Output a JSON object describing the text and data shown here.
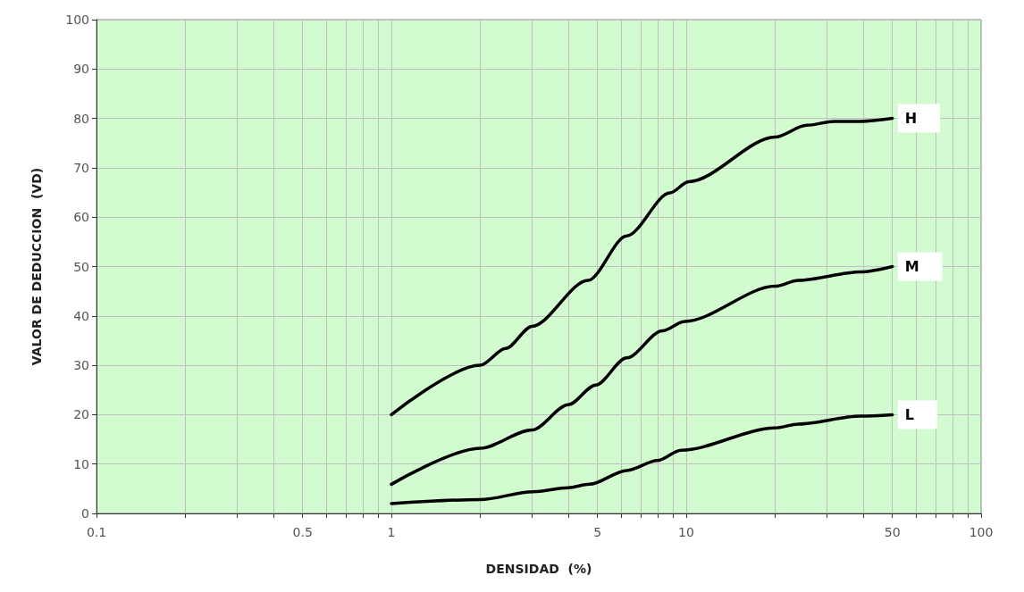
{
  "chart_data": {
    "type": "line",
    "xlabel": "DENSIDAD  (%)",
    "ylabel": "VALOR DE DEDUCCION  (VD)",
    "log": "x",
    "xlim": [
      0.1,
      100
    ],
    "ylim": [
      0,
      100
    ],
    "xticks": [
      0.1,
      {
        "value": 0.2,
        "label": null
      },
      {
        "value": 0.3,
        "label": null
      },
      {
        "value": 0.4,
        "label": null
      },
      0.5,
      {
        "value": 0.6,
        "label": null
      },
      {
        "value": 0.7,
        "label": null
      },
      {
        "value": 0.8,
        "label": null
      },
      {
        "value": 0.9,
        "label": null
      },
      1,
      {
        "value": 2,
        "label": null
      },
      {
        "value": 3,
        "label": null
      },
      {
        "value": 4,
        "label": null
      },
      5,
      {
        "value": 6,
        "label": null
      },
      {
        "value": 7,
        "label": null
      },
      {
        "value": 8,
        "label": null
      },
      {
        "value": 9,
        "label": null
      },
      10,
      {
        "value": 20,
        "label": null
      },
      {
        "value": 30,
        "label": null
      },
      {
        "value": 40,
        "label": null
      },
      50,
      {
        "value": 60,
        "label": null
      },
      {
        "value": 70,
        "label": null
      },
      {
        "value": 80,
        "label": null
      },
      {
        "value": 90,
        "label": null
      },
      100
    ],
    "yticks": [
      0,
      10,
      20,
      30,
      40,
      50,
      60,
      70,
      80,
      90,
      100
    ],
    "grid": true,
    "marker": "none",
    "line_style": "solid",
    "series": [
      {
        "name": "H",
        "color": "#000000",
        "x": [
          1,
          2,
          2.44,
          3,
          4.64,
          6.28,
          8.8,
          10.2,
          20,
          25.6,
          31.7,
          39.2,
          50
        ],
        "values": [
          20,
          30,
          33.4,
          37.9,
          47.2,
          56.2,
          64.9,
          67.2,
          76.2,
          78.6,
          79.4,
          79.4,
          80
        ]
      },
      {
        "name": "M",
        "color": "#000000",
        "x": [
          1,
          2,
          3,
          3.98,
          4.93,
          6.28,
          8.3,
          9.9,
          20,
          24,
          39,
          50
        ],
        "values": [
          5.9,
          13.2,
          16.9,
          22,
          26,
          31.5,
          37,
          38.9,
          46,
          47.2,
          48.9,
          50
        ]
      },
      {
        "name": "L",
        "color": "#000000",
        "x": [
          1,
          2,
          3.02,
          3.98,
          4.7,
          6.28,
          7.98,
          9.6,
          20,
          24,
          39,
          50
        ],
        "values": [
          2,
          2.8,
          4.4,
          5.2,
          5.9,
          8.7,
          10.7,
          12.8,
          17.3,
          18.1,
          19.7,
          20
        ]
      }
    ]
  }
}
